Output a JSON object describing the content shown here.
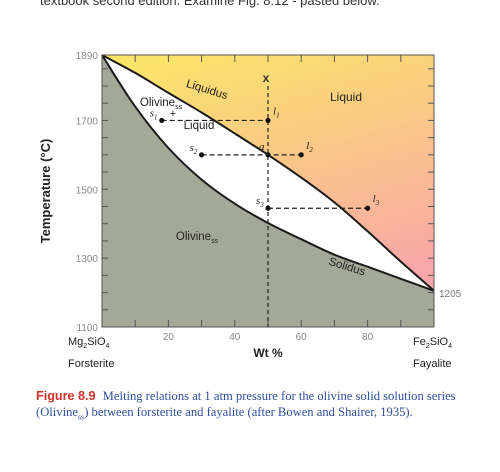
{
  "header": {
    "cut_text": "textbook second edition. Examine Fig. 8.12 - pasted below."
  },
  "chart_data": {
    "type": "phase-diagram",
    "ylabel": "Temperature (°C)",
    "xlabel": "Wt %",
    "xlim": [
      0,
      100
    ],
    "ylim": [
      1100,
      1890
    ],
    "x_ticks": [
      20,
      40,
      60,
      80
    ],
    "y_ticks": [
      1890,
      1700,
      1500,
      1300,
      1100
    ],
    "endpoints": {
      "left": {
        "formula_main": "Mg",
        "formula_sub1": "2",
        "formula_mid": "SiO",
        "formula_sub2": "4",
        "name": "Forsterite",
        "melting_point": 1890
      },
      "right": {
        "formula_main": "Fe",
        "formula_sub1": "2",
        "formula_mid": "SiO",
        "formula_sub2": "4",
        "name": "Fayalite",
        "melting_point": 1205
      }
    },
    "right_melting_label": "1205",
    "liquidus": [
      [
        0,
        1890
      ],
      [
        10,
        1838
      ],
      [
        20,
        1780
      ],
      [
        30,
        1723
      ],
      [
        40,
        1662
      ],
      [
        50,
        1600
      ],
      [
        60,
        1534
      ],
      [
        70,
        1462
      ],
      [
        80,
        1378
      ],
      [
        90,
        1290
      ],
      [
        100,
        1205
      ]
    ],
    "solidus": [
      [
        0,
        1890
      ],
      [
        10,
        1740
      ],
      [
        20,
        1620
      ],
      [
        30,
        1528
      ],
      [
        40,
        1458
      ],
      [
        50,
        1402
      ],
      [
        60,
        1355
      ],
      [
        70,
        1310
      ],
      [
        80,
        1275
      ],
      [
        90,
        1240
      ],
      [
        100,
        1205
      ]
    ],
    "region_labels": {
      "liquid": "Liquid",
      "olivine_liquid_1": "Olivine",
      "olivine_liquid_sub": "ss",
      "olivine_liquid_plus": "+",
      "olivine_liquid_2": "Liquid",
      "olivine": "Olivine",
      "olivine_sub": "ss",
      "liquidus": "Liquidus",
      "solidus": "Solidus"
    },
    "composition_line": {
      "x": 50,
      "label": "x"
    },
    "points": [
      {
        "label": "l",
        "sub": "1",
        "x": 50,
        "y": 1700
      },
      {
        "label": "l",
        "sub": "2",
        "x": 60,
        "y": 1600
      },
      {
        "label": "l",
        "sub": "3",
        "x": 80,
        "y": 1445
      },
      {
        "label": "s",
        "sub": "1",
        "x": 18,
        "y": 1700
      },
      {
        "label": "s",
        "sub": "2",
        "x": 30,
        "y": 1600
      },
      {
        "label": "s",
        "sub": "3",
        "x": 50,
        "y": 1445
      },
      {
        "label": "a",
        "sub": "",
        "x": 50,
        "y": 1600
      }
    ],
    "tie_lines": [
      {
        "x1": 18,
        "x2": 50,
        "y": 1700
      },
      {
        "x1": 30,
        "x2": 60,
        "y": 1600
      },
      {
        "x1": 50,
        "x2": 80,
        "y": 1445
      }
    ],
    "colors": {
      "solid_region": "#a3a898",
      "two_phase_region": "#ffffff",
      "liquid_top": "#fbe866",
      "liquid_bottom": "#f9a7a8",
      "dash": "#222222"
    }
  },
  "caption": {
    "label": "Figure 8.9",
    "text": "Melting relations at 1 atm pressure for the olivine solid solution series (Olivine",
    "sub": "ss",
    "text2": ") between forsterite and fayalite (after Bowen and Shairer, 1935)."
  }
}
